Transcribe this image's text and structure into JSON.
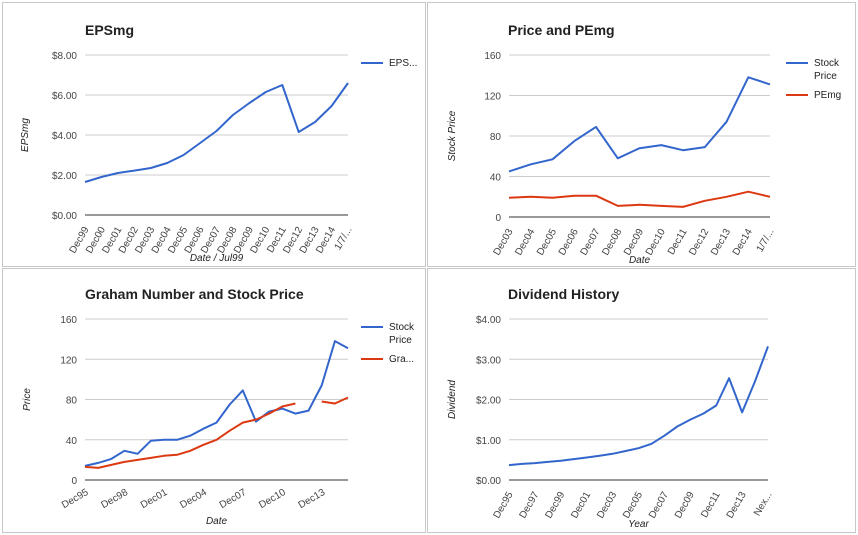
{
  "colors": {
    "blue": "#3366cc",
    "red": "#dc3912"
  },
  "chart_data": [
    {
      "type": "line",
      "title": "EPSmg",
      "xlabel": "Date / Jul99",
      "ylabel": "EPSmg",
      "ylim": [
        0,
        8
      ],
      "yticks": [
        "$0.00",
        "$2.00",
        "$4.00",
        "$6.00",
        "$8.00"
      ],
      "categories": [
        "Dec99",
        "Dec00",
        "Dec01",
        "Dec02",
        "Dec03",
        "Dec04",
        "Dec05",
        "Dec06",
        "Dec07",
        "Dec08",
        "Dec09",
        "Dec10",
        "Dec11",
        "Dec12",
        "Dec13",
        "Dec14",
        "1/7/..."
      ],
      "series": [
        {
          "name": "EPS...",
          "values": [
            1.65,
            1.9,
            2.1,
            2.22,
            2.35,
            2.6,
            3.0,
            3.6,
            4.2,
            5.0,
            5.6,
            6.15,
            6.5,
            4.15,
            4.65,
            5.45,
            6.6
          ]
        }
      ],
      "legend": "right",
      "grid": true
    },
    {
      "type": "line",
      "title": "Price and PEmg",
      "xlabel": "Date",
      "ylabel": "Stock Price",
      "ylim": [
        0,
        160
      ],
      "yticks": [
        "0",
        "40",
        "80",
        "120",
        "160"
      ],
      "categories": [
        "Dec03",
        "Dec04",
        "Dec05",
        "Dec06",
        "Dec07",
        "Dec08",
        "Dec09",
        "Dec10",
        "Dec11",
        "Dec12",
        "Dec13",
        "Dec14",
        "1/7/..."
      ],
      "series": [
        {
          "name": "Stock Price",
          "values": [
            45,
            52,
            57,
            75,
            89,
            58,
            68,
            71,
            66,
            69,
            94,
            138,
            131
          ]
        },
        {
          "name": "PEmg",
          "values": [
            19,
            20,
            19,
            21,
            21,
            11,
            12,
            11,
            10,
            16,
            20,
            25,
            20
          ]
        }
      ],
      "legend": "right",
      "grid": true
    },
    {
      "type": "line",
      "title": "Graham Number and Stock Price",
      "xlabel": "Date",
      "ylabel": "Price",
      "ylim": [
        0,
        160
      ],
      "yticks": [
        "0",
        "40",
        "80",
        "120",
        "160"
      ],
      "xticks": [
        "Dec95",
        "Dec98",
        "Dec01",
        "Dec04",
        "Dec07",
        "Dec10",
        "Dec13"
      ],
      "xrange": [
        1995,
        2015
      ],
      "series": [
        {
          "name": "Stock Price",
          "x": [
            1995,
            1996,
            1997,
            1998,
            1999,
            2000,
            2001,
            2002,
            2003,
            2004,
            2005,
            2006,
            2007,
            2008,
            2009,
            2010,
            2011,
            2012,
            2013,
            2014,
            2015
          ],
          "values": [
            14,
            17,
            21,
            29,
            26,
            39,
            40,
            40,
            44,
            51,
            57,
            75,
            89,
            58,
            68,
            71,
            66,
            69,
            94,
            138,
            131
          ]
        },
        {
          "name": "Gra...",
          "x": [
            1995,
            1996,
            1997,
            1998,
            1999,
            2000,
            2001,
            2002,
            2003,
            2004,
            2005,
            2006,
            2007,
            2008,
            2009,
            2010,
            2011
          ],
          "values": [
            13,
            12,
            15,
            18,
            20,
            22,
            24,
            25,
            29,
            35,
            40,
            49,
            57,
            60,
            66,
            73,
            76
          ]
        },
        {
          "name": "Gra...",
          "x": [
            2013,
            2014,
            2015
          ],
          "values": [
            78,
            76,
            82
          ],
          "legend_hidden": true
        }
      ],
      "legend": "right",
      "grid": true
    },
    {
      "type": "line",
      "title": "Dividend History",
      "xlabel": "Year",
      "ylabel": "Dividend",
      "ylim": [
        0,
        4
      ],
      "yticks": [
        "$0.00",
        "$1.00",
        "$2.00",
        "$3.00",
        "$4.00"
      ],
      "xticks": [
        "Dec95",
        "Dec97",
        "Dec99",
        "Dec01",
        "Dec03",
        "Dec05",
        "Dec07",
        "Dec09",
        "Dec11",
        "Dec13",
        "Nex..."
      ],
      "xrange": [
        1995,
        2015
      ],
      "series": [
        {
          "name": "Dividend",
          "x": [
            1995,
            1996,
            1997,
            1998,
            1999,
            2000,
            2001,
            2002,
            2003,
            2004,
            2005,
            2006,
            2007,
            2008,
            2009,
            2010,
            2011,
            2012,
            2013,
            2014,
            2015
          ],
          "values": [
            0.37,
            0.4,
            0.42,
            0.45,
            0.48,
            0.52,
            0.56,
            0.6,
            0.65,
            0.72,
            0.79,
            0.9,
            1.1,
            1.33,
            1.5,
            1.65,
            1.85,
            2.53,
            1.68,
            2.45,
            3.32
          ]
        }
      ],
      "legend": "none",
      "grid": true
    }
  ]
}
